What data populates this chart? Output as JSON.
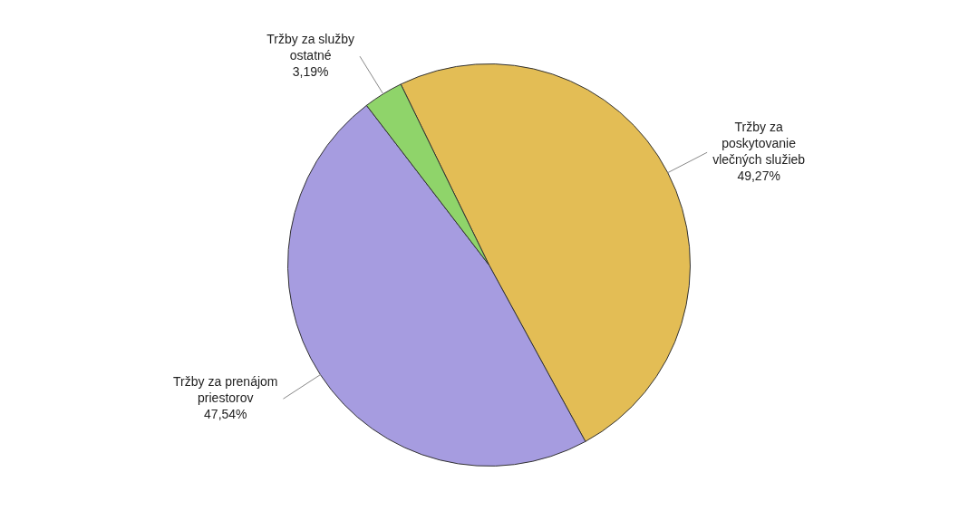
{
  "chart_data": {
    "type": "pie",
    "categories": [
      "Tržby za poskytovanie vlečných služieb",
      "Tržby za prenájom priestorov",
      "Tržby za služby ostatné"
    ],
    "values": [
      49.27,
      47.54,
      3.19
    ],
    "colors": [
      "#e3bd55",
      "#a69ce0",
      "#8fd46a"
    ],
    "value_labels": [
      "49,27%",
      "47,54%",
      "3,19%"
    ],
    "legend": false
  }
}
